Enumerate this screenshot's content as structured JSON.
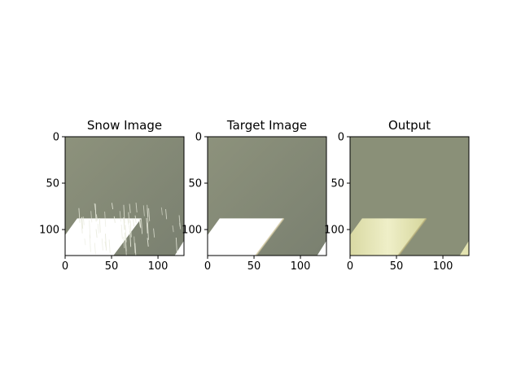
{
  "chart_data": [
    {
      "type": "image",
      "title": "Snow Image",
      "xticks": [
        0,
        50,
        100
      ],
      "yticks": [
        0,
        50,
        100
      ],
      "xlim": [
        0,
        128
      ],
      "ylim": [
        128,
        0
      ],
      "content": "snow"
    },
    {
      "type": "image",
      "title": "Target Image",
      "xticks": [
        0,
        50,
        100
      ],
      "yticks": [
        0,
        50,
        100
      ],
      "xlim": [
        0,
        128
      ],
      "ylim": [
        128,
        0
      ],
      "content": "target"
    },
    {
      "type": "image",
      "title": "Output",
      "xticks": [
        0,
        50,
        100
      ],
      "yticks": [
        0,
        50,
        100
      ],
      "xlim": [
        0,
        128
      ],
      "ylim": [
        128,
        0
      ],
      "content": "output"
    }
  ],
  "colors": {
    "background_gray": "#8a9079",
    "background_dark": "#7b8170",
    "stripe_white": "#ffffff",
    "stripe_output": "#e6e6b4"
  }
}
